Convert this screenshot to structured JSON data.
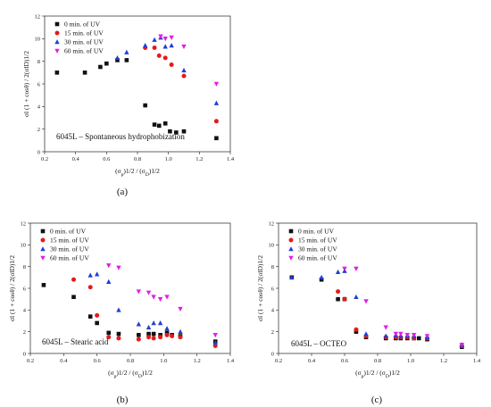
{
  "colors": {
    "s0": "#111111",
    "s15": "#e41a1c",
    "s30": "#1f3fd6",
    "s60": "#e21ce6"
  },
  "chart_data": [
    {
      "type": "scatter",
      "panel_label": "(a)",
      "annotation": "6045L – Spontaneous hydrophobization",
      "xlabel_main": "(σ",
      "xlabel_sub1": "p",
      "xlabel_mid": ")1/2 / (σ",
      "xlabel_sub2": "D",
      "xlabel_end": ")1/2",
      "ylabel": "σl (1 + cosθ) / 2(σlD)1/2",
      "xlim": [
        0.2,
        1.4
      ],
      "ylim": [
        0,
        12
      ],
      "xticks": [
        "0.2",
        "0.4",
        "0.6",
        "0.8",
        "1.0",
        "1.2",
        "1.4"
      ],
      "yticks": [
        "0",
        "2",
        "4",
        "6",
        "8",
        "10",
        "12"
      ],
      "legend_position": "top-left",
      "series": [
        {
          "name": "0 min. of UV",
          "marker": "square",
          "color": "#111111",
          "x": [
            0.28,
            0.46,
            0.56,
            0.6,
            0.67,
            0.73,
            0.85,
            0.91,
            0.94,
            0.98,
            1.01,
            1.05,
            1.1,
            1.31
          ],
          "y": [
            7.0,
            7.0,
            7.5,
            7.8,
            8.1,
            8.1,
            4.1,
            2.4,
            2.3,
            2.5,
            1.8,
            1.7,
            1.8,
            1.2
          ]
        },
        {
          "name": "15 min. of UV",
          "marker": "circle",
          "color": "#e41a1c",
          "x": [
            0.85,
            0.91,
            0.94,
            0.98,
            1.02,
            1.1,
            1.31
          ],
          "y": [
            9.2,
            9.2,
            8.5,
            8.3,
            7.7,
            6.7,
            2.7
          ]
        },
        {
          "name": "30 min. of UV",
          "marker": "triangle-up",
          "color": "#1f3fd6",
          "x": [
            0.67,
            0.73,
            0.85,
            0.91,
            0.95,
            0.98,
            1.02,
            1.1,
            1.31
          ],
          "y": [
            8.3,
            8.8,
            9.4,
            9.9,
            10.1,
            9.3,
            9.4,
            7.2,
            4.3
          ]
        },
        {
          "name": "60 min. of UV",
          "marker": "triangle-down",
          "color": "#e21ce6",
          "x": [
            0.95,
            0.98,
            1.02,
            1.1,
            1.31
          ],
          "y": [
            10.2,
            10.0,
            10.1,
            9.3,
            6.0
          ]
        }
      ]
    },
    {
      "type": "scatter",
      "panel_label": "(b)",
      "annotation": "6045L – Stearic acid",
      "xlabel_main": "(σ",
      "xlabel_sub1": "p",
      "xlabel_mid": ")1/2 / (σ",
      "xlabel_sub2": "D",
      "xlabel_end": ")1/2",
      "ylabel": "σl (1 + cosθ) / 2(σlD)1/2",
      "xlim": [
        0.2,
        1.4
      ],
      "ylim": [
        0,
        12
      ],
      "xticks": [
        "0.2",
        "0.4",
        "0.6",
        "0.8",
        "1.0",
        "1.2",
        "1.4"
      ],
      "yticks": [
        "0",
        "2",
        "4",
        "6",
        "8",
        "10",
        "12"
      ],
      "legend_position": "top-left",
      "series": [
        {
          "name": "0 min. of UV",
          "marker": "square",
          "color": "#111111",
          "x": [
            0.28,
            0.46,
            0.56,
            0.6,
            0.67,
            0.73,
            0.85,
            0.91,
            0.94,
            0.98,
            1.02,
            1.05,
            1.1,
            1.31
          ],
          "y": [
            6.3,
            5.2,
            3.4,
            2.8,
            1.9,
            1.8,
            1.7,
            1.8,
            1.8,
            1.7,
            1.9,
            1.7,
            1.6,
            1.1
          ]
        },
        {
          "name": "15 min. of UV",
          "marker": "circle",
          "color": "#e41a1c",
          "x": [
            0.46,
            0.56,
            0.6,
            0.67,
            0.73,
            0.85,
            0.91,
            0.94,
            0.98,
            1.02,
            1.05,
            1.1,
            1.31
          ],
          "y": [
            6.8,
            6.1,
            3.5,
            1.5,
            1.4,
            1.3,
            1.5,
            1.4,
            1.5,
            1.7,
            1.6,
            1.5,
            0.7
          ]
        },
        {
          "name": "30 min. of UV",
          "marker": "triangle-up",
          "color": "#1f3fd6",
          "x": [
            0.56,
            0.6,
            0.67,
            0.73,
            0.85,
            0.91,
            0.94,
            0.98,
            1.02,
            1.1,
            1.31
          ],
          "y": [
            7.2,
            7.3,
            6.6,
            4.0,
            2.7,
            2.4,
            2.8,
            2.8,
            2.3,
            2.0,
            1.0
          ]
        },
        {
          "name": "60 min. of UV",
          "marker": "triangle-down",
          "color": "#e21ce6",
          "x": [
            0.67,
            0.73,
            0.85,
            0.91,
            0.94,
            0.98,
            1.02,
            1.1,
            1.31
          ],
          "y": [
            8.1,
            7.9,
            5.7,
            5.6,
            5.2,
            5.0,
            5.2,
            4.1,
            1.7
          ]
        }
      ]
    },
    {
      "type": "scatter",
      "panel_label": "(c)",
      "annotation": "6045L – OCTEO",
      "xlabel_main": "(σ",
      "xlabel_sub1": "p",
      "xlabel_mid": ")1/2 / (σ",
      "xlabel_sub2": "D",
      "xlabel_end": ")1/2",
      "ylabel": "σl (1 + cosθ) / 2(σlD)1/2",
      "xlim": [
        0.2,
        1.4
      ],
      "ylim": [
        0,
        12
      ],
      "xticks": [
        "0.2",
        "0.4",
        "0.6",
        "0.8",
        "1.0",
        "1.2",
        "1.4"
      ],
      "yticks": [
        "0",
        "2",
        "4",
        "6",
        "8",
        "10",
        "12"
      ],
      "legend_position": "top-left",
      "series": [
        {
          "name": "0 min. of UV",
          "marker": "square",
          "color": "#111111",
          "x": [
            0.28,
            0.46,
            0.56,
            0.6,
            0.67,
            0.73,
            0.85,
            0.91,
            0.94,
            0.98,
            1.02,
            1.05,
            1.1,
            1.31
          ],
          "y": [
            7.0,
            6.8,
            5.0,
            5.0,
            2.0,
            1.5,
            1.4,
            1.4,
            1.4,
            1.4,
            1.4,
            1.4,
            1.3,
            0.6
          ]
        },
        {
          "name": "15 min. of UV",
          "marker": "circle",
          "color": "#e41a1c",
          "x": [
            0.56,
            0.6,
            0.67,
            0.73,
            0.85,
            0.91,
            0.94,
            0.98,
            1.02,
            1.1,
            1.31
          ],
          "y": [
            5.7,
            5.0,
            2.2,
            1.6,
            1.5,
            1.5,
            1.5,
            1.5,
            1.4,
            1.4,
            0.7
          ]
        },
        {
          "name": "30 min. of UV",
          "marker": "triangle-up",
          "color": "#1f3fd6",
          "x": [
            0.28,
            0.46,
            0.56,
            0.6,
            0.67,
            0.73,
            0.85,
            0.91,
            0.94,
            0.98,
            1.02,
            1.1,
            1.31
          ],
          "y": [
            7.0,
            7.0,
            7.5,
            7.6,
            5.2,
            1.8,
            1.6,
            1.7,
            1.6,
            1.6,
            1.6,
            1.5,
            0.8
          ]
        },
        {
          "name": "60 min. of UV",
          "marker": "triangle-down",
          "color": "#e21ce6",
          "x": [
            0.6,
            0.67,
            0.73,
            0.85,
            0.91,
            0.94,
            0.98,
            1.02,
            1.1,
            1.31
          ],
          "y": [
            7.8,
            7.8,
            4.8,
            2.4,
            1.8,
            1.8,
            1.7,
            1.7,
            1.6,
            0.8
          ]
        }
      ]
    }
  ]
}
